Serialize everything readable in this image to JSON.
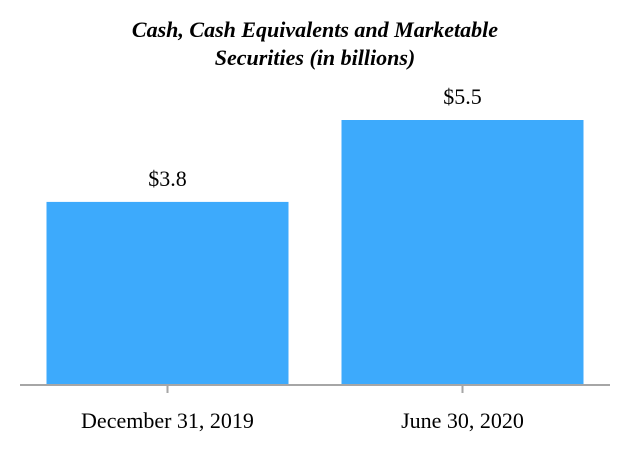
{
  "chart_data": {
    "type": "bar",
    "title_lines": [
      "Cash, Cash Equivalents and Marketable",
      "Securities (in billions)"
    ],
    "categories": [
      "December 31, 2019",
      "June 30, 2020"
    ],
    "values": [
      3.8,
      5.5
    ],
    "data_labels": [
      "$3.8",
      "$5.5"
    ],
    "xlabel": "",
    "ylabel": "",
    "ylim": [
      0,
      5.5
    ],
    "grid": false,
    "legend": "none",
    "colors": {
      "bar": "#3daafc",
      "axis": "#a6a6a6"
    }
  }
}
